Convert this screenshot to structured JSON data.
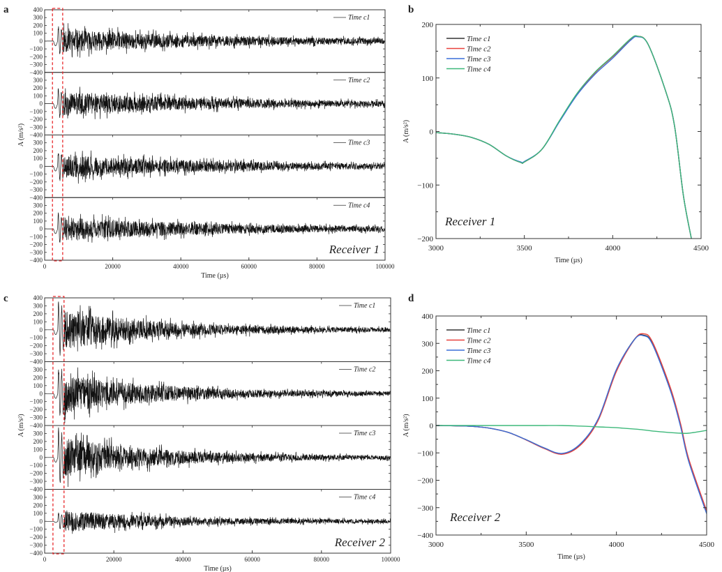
{
  "panel_letters": [
    "a",
    "b",
    "c",
    "d"
  ],
  "chart_data": [
    {
      "panel": "a",
      "type": "line",
      "layout": "4 stacked subplots",
      "xlabel": "Time (µs)",
      "ylabel": "A (m/s²)",
      "xlim": [
        0,
        100000
      ],
      "ylim": [
        -400,
        400
      ],
      "xticks": [
        "0",
        "20000",
        "40000",
        "60000",
        "80000",
        "100000"
      ],
      "yticks": [
        "-400",
        "-300",
        "-200",
        "-100",
        "0",
        "100",
        "200",
        "300",
        "400"
      ],
      "series": [
        {
          "name": "Time c1"
        },
        {
          "name": "Time c2"
        },
        {
          "name": "Time c3"
        },
        {
          "name": "Time c4"
        }
      ],
      "annotation": "Receiver 1",
      "highlight_window": [
        2300,
        5300
      ],
      "highlight_color": "#e8282b",
      "series_color": "#111111",
      "legend": "top-right"
    },
    {
      "panel": "b",
      "type": "line",
      "xlabel": "Time (µs)",
      "ylabel": "A (m/s²)",
      "xlim": [
        3000,
        4500
      ],
      "ylim": [
        -200,
        200
      ],
      "xticks": [
        "3000",
        "3500",
        "4000",
        "4500"
      ],
      "yticks": [
        "-200",
        "-100",
        "0",
        "100",
        "200"
      ],
      "annotation": "Receiver 1",
      "legend": "top-left",
      "x": [
        3000,
        3100,
        3200,
        3300,
        3400,
        3480,
        3500,
        3600,
        3700,
        3800,
        3900,
        4000,
        4100,
        4140,
        4200,
        4300,
        4350,
        4400,
        4445
      ],
      "series": [
        {
          "name": "Time c1",
          "color": "#333333",
          "values": [
            -2,
            -5,
            -11,
            -24,
            -46,
            -58,
            -57,
            -33,
            20,
            71,
            110,
            140,
            172,
            178,
            163,
            75,
            10,
            -120,
            -200
          ]
        },
        {
          "name": "Time c2",
          "color": "#e8413c",
          "values": [
            -2,
            -5,
            -11,
            -24,
            -46,
            -58,
            -57,
            -33,
            20,
            71,
            110,
            140,
            172,
            178,
            163,
            75,
            10,
            -120,
            -200
          ]
        },
        {
          "name": "Time c3",
          "color": "#3a6fd8",
          "values": [
            -2,
            -5,
            -11,
            -24,
            -46,
            -57,
            -56,
            -33,
            19,
            69,
            107,
            137,
            170,
            177,
            163,
            75,
            10,
            -120,
            -200
          ]
        },
        {
          "name": "Time c4",
          "color": "#3db87a",
          "values": [
            -2,
            -5,
            -11,
            -24,
            -46,
            -58,
            -57,
            -33,
            21,
            72,
            111,
            141,
            173,
            178,
            163,
            75,
            10,
            -120,
            -200
          ]
        }
      ]
    },
    {
      "panel": "c",
      "type": "line",
      "layout": "4 stacked subplots",
      "xlabel": "Time (µs)",
      "ylabel": "A (m/s²)",
      "xlim": [
        0,
        100000
      ],
      "ylim": [
        -400,
        400
      ],
      "xticks": [
        "0",
        "20000",
        "40000",
        "60000",
        "80000",
        "100000"
      ],
      "yticks": [
        "-400",
        "-300",
        "-200",
        "-100",
        "0",
        "100",
        "200",
        "300",
        "400"
      ],
      "series": [
        {
          "name": "Time c1"
        },
        {
          "name": "Time c2"
        },
        {
          "name": "Time c3"
        },
        {
          "name": "Time c4"
        }
      ],
      "annotation": "Receiver 2",
      "highlight_window": [
        2400,
        5600
      ],
      "highlight_color": "#e8282b",
      "series_color": "#111111",
      "legend": "top-right"
    },
    {
      "panel": "d",
      "type": "line",
      "xlabel": "Time (µs)",
      "ylabel": "A (m/s²)",
      "xlim": [
        3000,
        4500
      ],
      "ylim": [
        -400,
        400
      ],
      "xticks": [
        "3000",
        "3500",
        "4000",
        "4500"
      ],
      "yticks": [
        "-400",
        "-300",
        "-200",
        "-100",
        "0",
        "100",
        "200",
        "300",
        "400"
      ],
      "annotation": "Receiver 2",
      "legend": "top-left",
      "x": [
        3000,
        3100,
        3200,
        3300,
        3400,
        3500,
        3600,
        3700,
        3800,
        3900,
        4000,
        4100,
        4150,
        4200,
        4300,
        4355,
        4400,
        4500
      ],
      "series": [
        {
          "name": "Time c1",
          "color": "#333333",
          "values": [
            0,
            -1,
            -3,
            -10,
            -25,
            -52,
            -82,
            -103,
            -68,
            25,
            204,
            315,
            330,
            298,
            128,
            0,
            -128,
            -320
          ]
        },
        {
          "name": "Time c2",
          "color": "#e8413c",
          "values": [
            0,
            -1,
            -3,
            -10,
            -25,
            -53,
            -84,
            -105,
            -72,
            20,
            198,
            314,
            335,
            305,
            136,
            8,
            -120,
            -312
          ]
        },
        {
          "name": "Time c3",
          "color": "#3a6fd8",
          "values": [
            0,
            -1,
            -3,
            -10,
            -25,
            -52,
            -82,
            -102,
            -67,
            26,
            205,
            314,
            328,
            296,
            125,
            -3,
            -130,
            -322
          ]
        },
        {
          "name": "Time c4",
          "color": "#3db87a",
          "values": [
            0,
            0,
            0,
            0,
            0,
            0,
            0,
            0,
            -2,
            -5,
            -8,
            -13,
            -16,
            -20,
            -26,
            -28,
            -28,
            -18
          ]
        }
      ]
    }
  ]
}
